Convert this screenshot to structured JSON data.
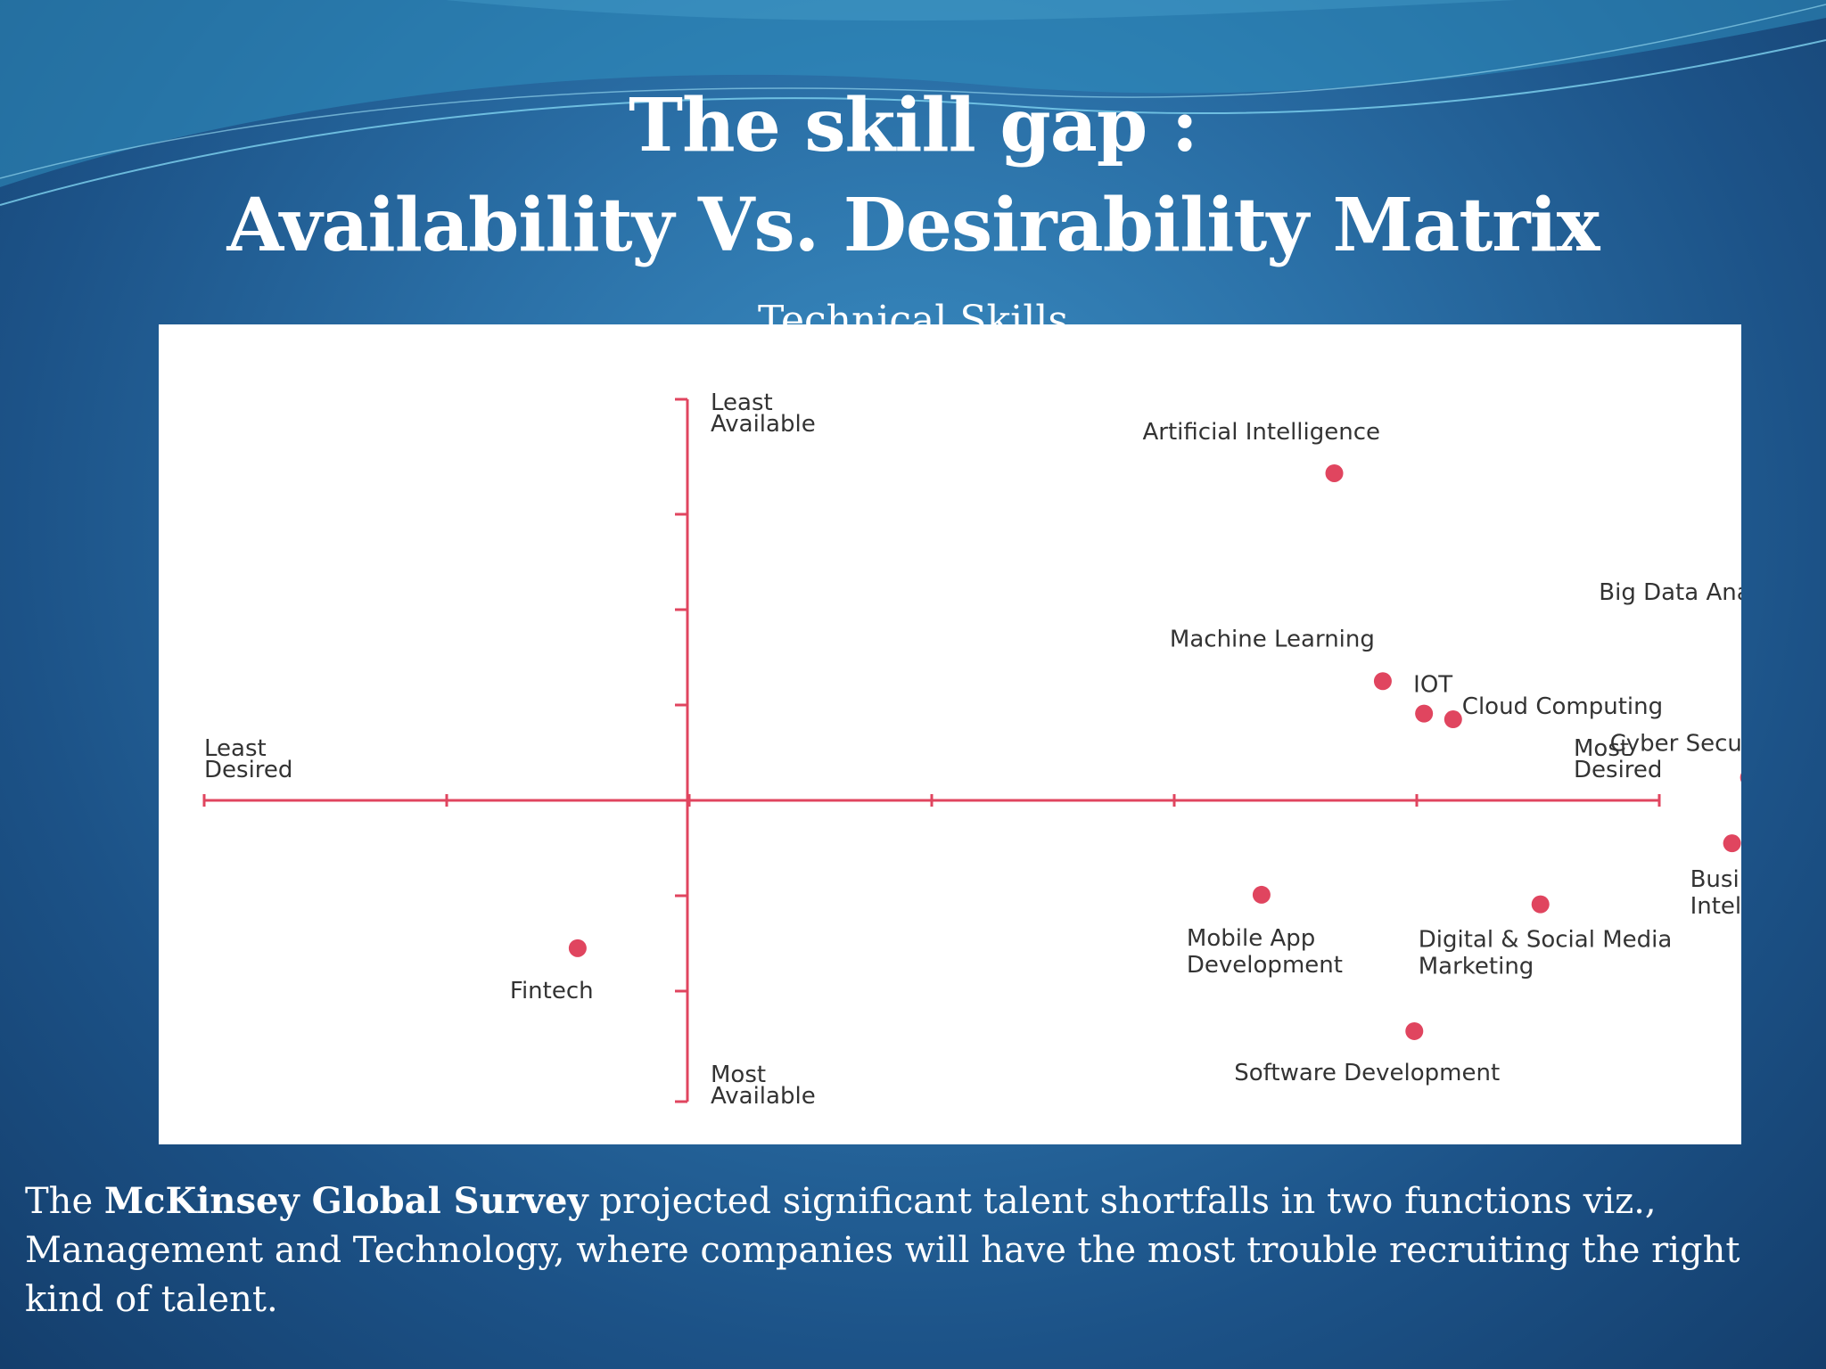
{
  "slide": {
    "title_line1": "The skill gap :",
    "title_line2": "Availability Vs. Desirability Matrix",
    "subtitle": "Technical Skills",
    "caption": {
      "pre": "The ",
      "bold": "McKinsey Global Survey",
      "post": " projected significant talent shortfalls in two functions viz., Management and Technology, where companies will have the most trouble recruiting the right kind of talent."
    }
  },
  "colors": {
    "accent": "#e0455f",
    "label": "#333333",
    "panel": "#ffffff"
  },
  "chart_data": {
    "type": "scatter",
    "xlim": [
      -3,
      3
    ],
    "ylim": [
      -3,
      3
    ],
    "x_ticks": [
      -3,
      -2,
      -1,
      0,
      1,
      2,
      3
    ],
    "y_ticks": [
      -3,
      -2,
      -1,
      0,
      1,
      2,
      3
    ],
    "axis_labels": {
      "x_left": [
        "Least",
        "Desired"
      ],
      "x_right": [
        "Most",
        "Desired"
      ],
      "y_top": [
        "Least",
        "Available"
      ],
      "y_bottom": [
        "Most",
        "Available"
      ]
    },
    "points": [
      {
        "label": [
          "Artificial Intelligence"
        ],
        "x": 1.66,
        "y": 3.43
      },
      {
        "label": [
          "Big Data Analytics"
        ],
        "x": 3.49,
        "y": 1.75
      },
      {
        "label": [
          "Machine Learning"
        ],
        "x": 1.86,
        "y": 1.25
      },
      {
        "label": [
          "IOT"
        ],
        "x": 2.03,
        "y": 0.91
      },
      {
        "label": [
          "Cloud Computing"
        ],
        "x": 2.15,
        "y": 0.85
      },
      {
        "label": [
          "Cyber Security"
        ],
        "x": 3.37,
        "y": 0.24
      },
      {
        "label": [
          "Business",
          "Intelligence"
        ],
        "x": 3.3,
        "y": -0.45
      },
      {
        "label": [
          "Mobile App",
          "Development"
        ],
        "x": 1.36,
        "y": -0.99
      },
      {
        "label": [
          "Digital & Social Media",
          "Marketing"
        ],
        "x": 2.51,
        "y": -1.09
      },
      {
        "label": [
          "Fintech"
        ],
        "x": -1.46,
        "y": -1.55
      },
      {
        "label": [
          "Software Development"
        ],
        "x": 1.99,
        "y": -2.42
      }
    ]
  }
}
